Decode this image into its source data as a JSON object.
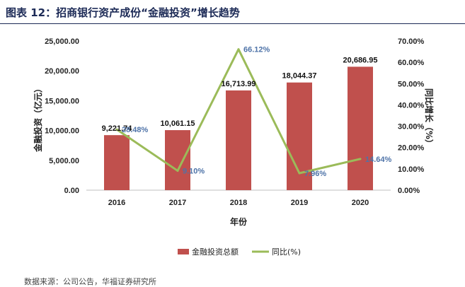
{
  "figure": {
    "title": "图表 12：招商银行资产成份“金融投资”增长趋势",
    "source": "数据来源：公司公告，华福证券研究所"
  },
  "chart_data": {
    "type": "bar",
    "categories": [
      "2016",
      "2017",
      "2018",
      "2019",
      "2020"
    ],
    "series": [
      {
        "name": "金融投资总额",
        "type": "bar",
        "axis": "left",
        "color": "#c0504d",
        "values": [
          9221.74,
          10061.15,
          16713.99,
          18044.37,
          20686.95
        ],
        "labels": [
          "9,221.74",
          "10,061.15",
          "16,713.99",
          "18,044.37",
          "20,686.95"
        ]
      },
      {
        "name": "同比(%)",
        "type": "line",
        "axis": "right",
        "color": "#9bbb59",
        "values": [
          28.48,
          9.1,
          66.12,
          7.96,
          14.64
        ],
        "labels": [
          "28.48%",
          "9.10%",
          "66.12%",
          "7.96%",
          "14.64%"
        ]
      }
    ],
    "xlabel": "年份",
    "ylabel_left": "金融投资（亿元）",
    "ylabel_right": "同比增长（%）",
    "ylim_left": [
      0,
      25000
    ],
    "ylim_right": [
      0,
      70
    ],
    "yticks_left": [
      "0.00",
      "5,000.00",
      "10,000.00",
      "15,000.00",
      "20,000.00",
      "25,000.00"
    ],
    "yticks_right": [
      "0.00%",
      "10.00%",
      "20.00%",
      "30.00%",
      "40.00%",
      "50.00%",
      "60.00%",
      "70.00%"
    ],
    "legend_position": "bottom"
  }
}
